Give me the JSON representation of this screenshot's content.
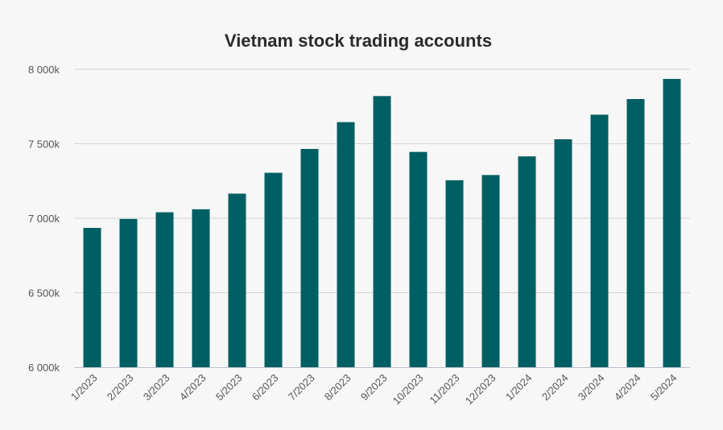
{
  "chart_data": {
    "type": "bar",
    "title": "Vietnam stock trading accounts",
    "xlabel": "",
    "ylabel": "",
    "ylim": [
      6000,
      8000
    ],
    "yticks": [
      6000,
      6500,
      7000,
      7500,
      8000
    ],
    "ytick_labels": [
      "6 000k",
      "6 500k",
      "7 000k",
      "7 500k",
      "8 000k"
    ],
    "grid": true,
    "categories": [
      "1/2023",
      "2/2023",
      "3/2023",
      "4/2023",
      "5/2023",
      "6/2023",
      "7/2023",
      "8/2023",
      "9/2023",
      "10/2023",
      "11/2023",
      "12/2023",
      "1/2024",
      "2/2024",
      "3/2024",
      "4/2024",
      "5/2024"
    ],
    "values": [
      6935,
      6995,
      7040,
      7060,
      7165,
      7305,
      7465,
      7645,
      7820,
      7445,
      7255,
      7290,
      7415,
      7530,
      7695,
      7800,
      7935
    ],
    "colors": {
      "bar": "#005f63",
      "grid": "#d3d3d3",
      "axis": "#b8c0d0",
      "tick_text": "#555555",
      "title": "#2b2b2b"
    }
  }
}
